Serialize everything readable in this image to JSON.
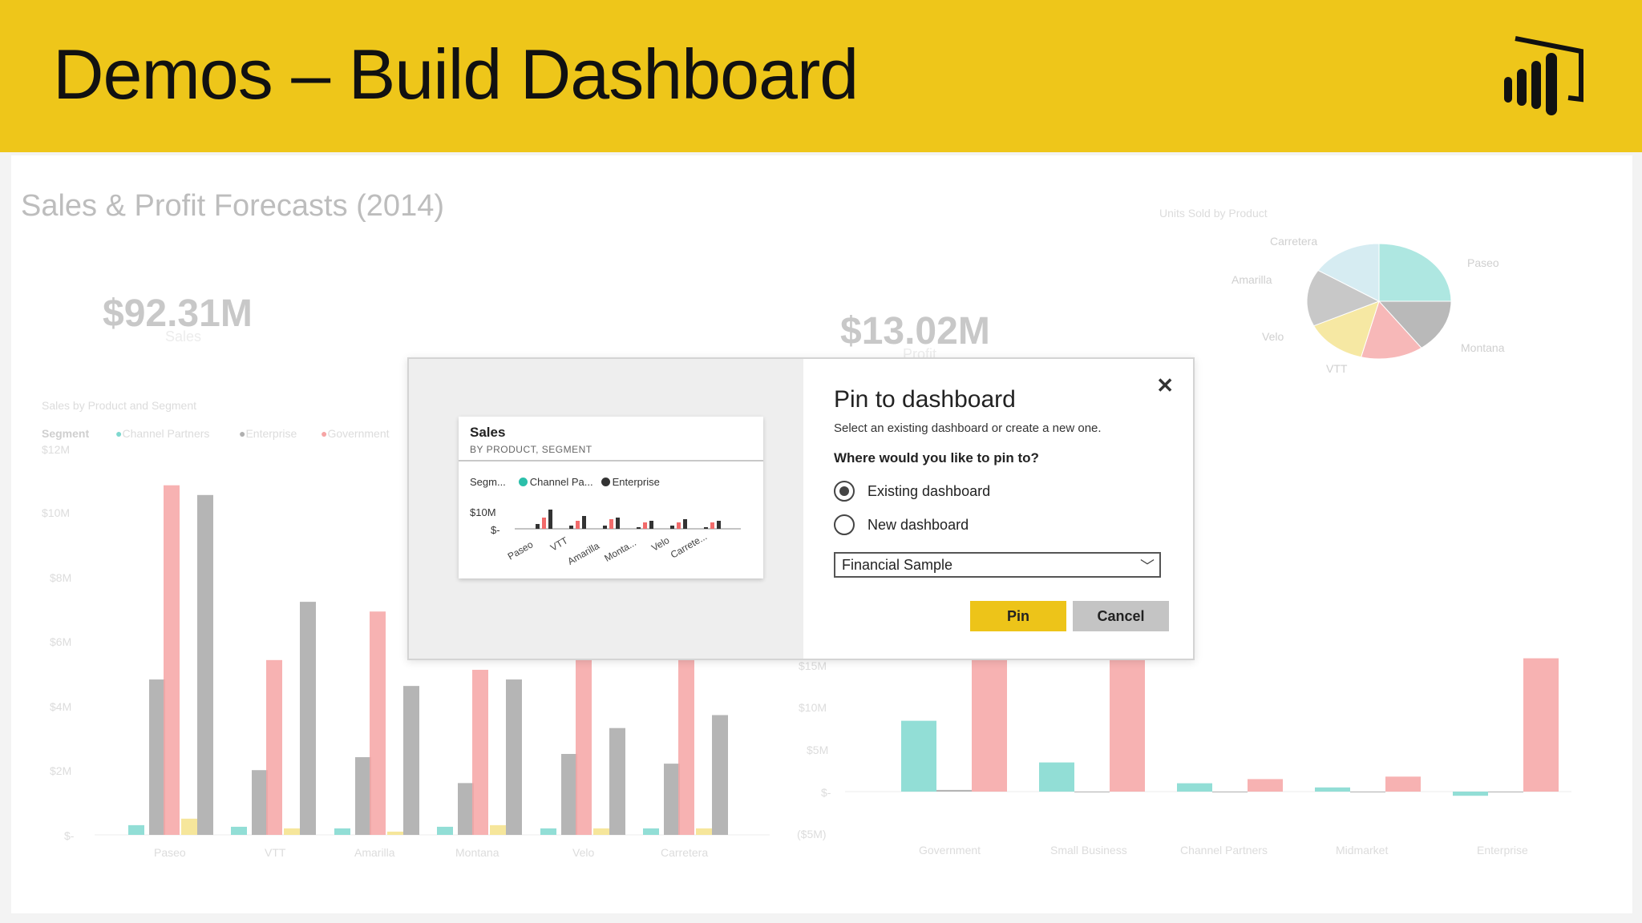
{
  "banner": {
    "title": "Demos – Build Dashboard",
    "logo_icon": "power-bi-logo-icon"
  },
  "report": {
    "title": "Sales & Profit Forecasts (2014)",
    "kpi_sales": {
      "value": "$92.31M",
      "label": "Sales"
    },
    "kpi_profit": {
      "value": "$13.02M",
      "label": "Profit"
    },
    "left_chart": {
      "title": "Sales by Product and Segment",
      "legend_label": "Segment",
      "legend": [
        "Channel Partners",
        "Enterprise",
        "Government"
      ],
      "y_ticks": [
        "$12M",
        "$10M",
        "$8M",
        "$6M",
        "$4M",
        "$2M",
        "$-"
      ],
      "categories": [
        "Paseo",
        "VTT",
        "Amarilla",
        "Montana",
        "Velo",
        "Carretera"
      ]
    },
    "right_chart": {
      "y_ticks": [
        "$15M",
        "$10M",
        "$5M",
        "$-",
        "($5M)"
      ],
      "categories": [
        "Government",
        "Small Business",
        "Channel Partners",
        "Midmarket",
        "Enterprise"
      ]
    },
    "pie": {
      "title": "Units Sold by Product",
      "labels": [
        "Carretera",
        "Paseo",
        "Amarilla",
        "Velo",
        "Montana",
        "VTT"
      ]
    }
  },
  "colors": {
    "accent": "#edc419",
    "teal": "#7fd8cf",
    "gray": "#a8a8a8",
    "salmon": "#f6a5a5",
    "yellow": "#f5e28a"
  },
  "chart_data": [
    {
      "type": "bar",
      "title": "Sales by Product and Segment",
      "ylim": [
        0,
        12
      ],
      "categories": [
        "Paseo",
        "VTT",
        "Amarilla",
        "Montana",
        "Velo",
        "Carretera"
      ],
      "series": [
        {
          "name": "Channel Partners",
          "values": [
            0.3,
            0.25,
            0.2,
            0.25,
            0.2,
            0.2
          ]
        },
        {
          "name": "Enterprise",
          "values": [
            4.8,
            2.0,
            2.4,
            1.6,
            2.5,
            2.2
          ]
        },
        {
          "name": "Government",
          "values": [
            10.8,
            5.4,
            6.9,
            5.1,
            5.8,
            5.4
          ]
        },
        {
          "values": [
            0.5,
            0.2,
            0.1,
            0.3,
            0.2,
            0.2
          ]
        },
        {
          "values": [
            10.5,
            7.2,
            4.6,
            4.8,
            3.3,
            3.7
          ]
        }
      ]
    },
    {
      "type": "bar",
      "ylim": [
        -5,
        15
      ],
      "categories": [
        "Government",
        "Small Business",
        "Channel Partners",
        "Midmarket",
        "Enterprise"
      ],
      "series": [
        {
          "values": [
            8.5,
            3.5,
            1.0,
            0.5,
            -0.5
          ]
        },
        {
          "values": [
            0.2,
            0.0,
            0.0,
            0.0,
            0.0
          ]
        },
        {
          "values": [
            16.0,
            16.0,
            1.5,
            1.8,
            16.0
          ]
        }
      ]
    },
    {
      "type": "pie",
      "title": "Units Sold by Product",
      "categories": [
        "Paseo",
        "Montana",
        "VTT",
        "Velo",
        "Amarilla",
        "Carretera"
      ],
      "values": [
        25,
        15,
        14,
        14,
        16,
        16
      ]
    }
  ],
  "dialog": {
    "tile": {
      "title": "Sales",
      "subtitle": "BY PRODUCT, SEGMENT",
      "legend_label": "Segm...",
      "legend": [
        "Channel Pa...",
        "Enterprise"
      ],
      "y_ticks": [
        "$10M",
        "$-"
      ],
      "categories": [
        "Paseo",
        "VTT",
        "Amarilla",
        "Monta...",
        "Velo",
        "Carrete..."
      ]
    },
    "close_icon": "close-icon",
    "title": "Pin to dashboard",
    "description": "Select an existing dashboard or create a new one.",
    "question": "Where would you like to pin to?",
    "options": [
      {
        "label": "Existing dashboard",
        "selected": true
      },
      {
        "label": "New dashboard",
        "selected": false
      }
    ],
    "dashboard_select": {
      "value": "Financial Sample",
      "icon": "chevron-down-icon"
    },
    "pin_label": "Pin",
    "cancel_label": "Cancel"
  }
}
